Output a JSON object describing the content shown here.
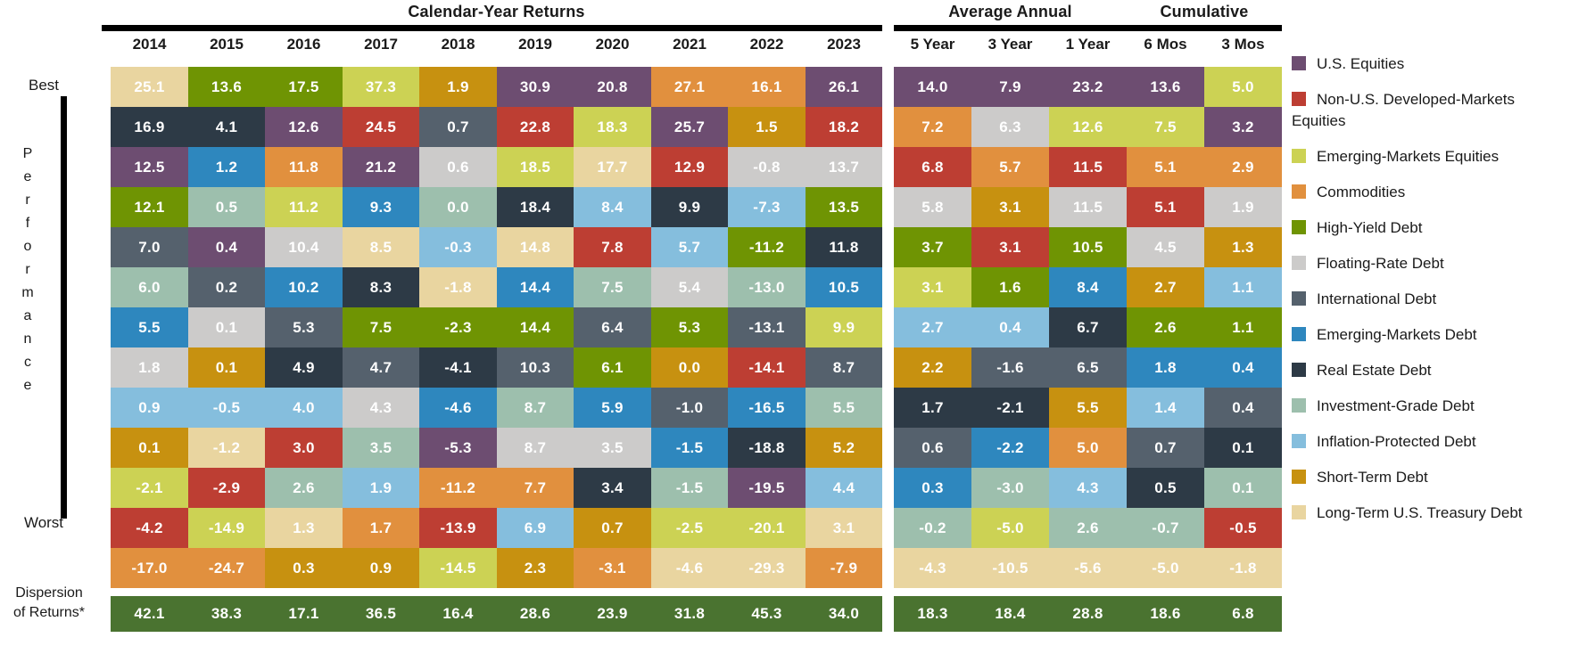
{
  "side": {
    "best": "Best",
    "performance": "Performance",
    "worst": "Worst",
    "dispersion_line1": "Dispersion",
    "dispersion_line2": "of Returns*"
  },
  "chart_data": {
    "type": "heatmap",
    "title": "Asset-class calendar-year returns ranked best to worst",
    "headers": {
      "calendar": "Calendar-Year Returns",
      "average": "Average Annual",
      "cumulative": "Cumulative"
    },
    "assets": {
      "us_equities": {
        "label": "U.S. Equities",
        "color": "#6d4d71"
      },
      "non_us_equities": {
        "label": "Non-U.S. Developed-Markets Equities",
        "color": "#bd3e33"
      },
      "em_equities": {
        "label": "Emerging-Markets Equities",
        "color": "#ccd254"
      },
      "commodities": {
        "label": "Commodities",
        "color": "#e1903e"
      },
      "high_yield": {
        "label": "High-Yield Debt",
        "color": "#6f9403"
      },
      "floating_rate": {
        "label": "Floating-Rate Debt",
        "color": "#cccbca"
      },
      "international": {
        "label": "International Debt",
        "color": "#55616d"
      },
      "em_debt": {
        "label": "Emerging-Markets Debt",
        "color": "#2e87be"
      },
      "real_estate": {
        "label": "Real Estate Debt",
        "color": "#2d3a46"
      },
      "investment_grade": {
        "label": "Investment-Grade Debt",
        "color": "#9dbfad"
      },
      "inflation_protected": {
        "label": "Inflation-Protected Debt",
        "color": "#85bedd"
      },
      "short_term": {
        "label": "Short-Term Debt",
        "color": "#c79110"
      },
      "lt_treasury": {
        "label": "Long-Term U.S. Treasury Debt",
        "color": "#e9d5a0"
      }
    },
    "legend_order": [
      "us_equities",
      "non_us_equities",
      "em_equities",
      "commodities",
      "high_yield",
      "floating_rate",
      "international",
      "em_debt",
      "real_estate",
      "investment_grade",
      "inflation_protected",
      "short_term",
      "lt_treasury"
    ],
    "dispersion_color": "#4a7330",
    "columns": [
      {
        "label": "2014",
        "group": "calendar",
        "dispersion": 42.1,
        "ranking": [
          [
            "lt_treasury",
            25.1
          ],
          [
            "real_estate",
            16.9
          ],
          [
            "us_equities",
            12.5
          ],
          [
            "high_yield",
            12.1
          ],
          [
            "international",
            7.0
          ],
          [
            "investment_grade",
            6.0
          ],
          [
            "em_debt",
            5.5
          ],
          [
            "floating_rate",
            1.8
          ],
          [
            "inflation_protected",
            0.9
          ],
          [
            "short_term",
            0.1
          ],
          [
            "em_equities",
            -2.1
          ],
          [
            "non_us_equities",
            -4.2
          ],
          [
            "commodities",
            -17.0
          ]
        ]
      },
      {
        "label": "2015",
        "group": "calendar",
        "dispersion": 38.3,
        "ranking": [
          [
            "high_yield",
            13.6
          ],
          [
            "real_estate",
            4.1
          ],
          [
            "em_debt",
            1.2
          ],
          [
            "investment_grade",
            0.5
          ],
          [
            "us_equities",
            0.4
          ],
          [
            "international",
            0.2
          ],
          [
            "floating_rate",
            0.1
          ],
          [
            "short_term",
            0.1
          ],
          [
            "inflation_protected",
            -0.5
          ],
          [
            "lt_treasury",
            -1.2
          ],
          [
            "non_us_equities",
            -2.9
          ],
          [
            "em_equities",
            -14.9
          ],
          [
            "commodities",
            -24.7
          ]
        ]
      },
      {
        "label": "2016",
        "group": "calendar",
        "dispersion": 17.1,
        "ranking": [
          [
            "high_yield",
            17.5
          ],
          [
            "us_equities",
            12.6
          ],
          [
            "commodities",
            11.8
          ],
          [
            "em_equities",
            11.2
          ],
          [
            "floating_rate",
            10.4
          ],
          [
            "em_debt",
            10.2
          ],
          [
            "international",
            5.3
          ],
          [
            "real_estate",
            4.9
          ],
          [
            "inflation_protected",
            4.0
          ],
          [
            "non_us_equities",
            3.0
          ],
          [
            "investment_grade",
            2.6
          ],
          [
            "lt_treasury",
            1.3
          ],
          [
            "short_term",
            0.3
          ]
        ]
      },
      {
        "label": "2017",
        "group": "calendar",
        "dispersion": 36.5,
        "ranking": [
          [
            "em_equities",
            37.3
          ],
          [
            "non_us_equities",
            24.5
          ],
          [
            "us_equities",
            21.2
          ],
          [
            "em_debt",
            9.3
          ],
          [
            "lt_treasury",
            8.5
          ],
          [
            "real_estate",
            8.3
          ],
          [
            "high_yield",
            7.5
          ],
          [
            "international",
            4.7
          ],
          [
            "floating_rate",
            4.3
          ],
          [
            "investment_grade",
            3.5
          ],
          [
            "inflation_protected",
            1.9
          ],
          [
            "commodities",
            1.7
          ],
          [
            "short_term",
            0.9
          ]
        ]
      },
      {
        "label": "2018",
        "group": "calendar",
        "dispersion": 16.4,
        "ranking": [
          [
            "short_term",
            1.9
          ],
          [
            "international",
            0.7
          ],
          [
            "floating_rate",
            0.6
          ],
          [
            "investment_grade",
            0.0
          ],
          [
            "inflation_protected",
            -0.3
          ],
          [
            "lt_treasury",
            -1.8
          ],
          [
            "high_yield",
            -2.3
          ],
          [
            "real_estate",
            -4.1
          ],
          [
            "em_debt",
            -4.6
          ],
          [
            "us_equities",
            -5.3
          ],
          [
            "commodities",
            -11.2
          ],
          [
            "non_us_equities",
            -13.9
          ],
          [
            "em_equities",
            -14.5
          ]
        ]
      },
      {
        "label": "2019",
        "group": "calendar",
        "dispersion": 28.6,
        "ranking": [
          [
            "us_equities",
            30.9
          ],
          [
            "non_us_equities",
            22.8
          ],
          [
            "em_equities",
            18.5
          ],
          [
            "real_estate",
            18.4
          ],
          [
            "lt_treasury",
            14.8
          ],
          [
            "em_debt",
            14.4
          ],
          [
            "high_yield",
            14.4
          ],
          [
            "international",
            10.3
          ],
          [
            "investment_grade",
            8.7
          ],
          [
            "floating_rate",
            8.7
          ],
          [
            "commodities",
            7.7
          ],
          [
            "inflation_protected",
            6.9
          ],
          [
            "short_term",
            2.3
          ]
        ]
      },
      {
        "label": "2020",
        "group": "calendar",
        "dispersion": 23.9,
        "ranking": [
          [
            "us_equities",
            20.8
          ],
          [
            "em_equities",
            18.3
          ],
          [
            "lt_treasury",
            17.7
          ],
          [
            "inflation_protected",
            8.4
          ],
          [
            "non_us_equities",
            7.8
          ],
          [
            "investment_grade",
            7.5
          ],
          [
            "international",
            6.4
          ],
          [
            "high_yield",
            6.1
          ],
          [
            "em_debt",
            5.9
          ],
          [
            "floating_rate",
            3.5
          ],
          [
            "real_estate",
            3.4
          ],
          [
            "short_term",
            0.7
          ],
          [
            "commodities",
            -3.1
          ]
        ]
      },
      {
        "label": "2021",
        "group": "calendar",
        "dispersion": 31.8,
        "ranking": [
          [
            "commodities",
            27.1
          ],
          [
            "us_equities",
            25.7
          ],
          [
            "non_us_equities",
            12.9
          ],
          [
            "real_estate",
            9.9
          ],
          [
            "inflation_protected",
            5.7
          ],
          [
            "floating_rate",
            5.4
          ],
          [
            "high_yield",
            5.3
          ],
          [
            "short_term",
            0.0
          ],
          [
            "international",
            -1.0
          ],
          [
            "em_debt",
            -1.5
          ],
          [
            "investment_grade",
            -1.5
          ],
          [
            "em_equities",
            -2.5
          ],
          [
            "lt_treasury",
            -4.6
          ]
        ]
      },
      {
        "label": "2022",
        "group": "calendar",
        "dispersion": 45.3,
        "ranking": [
          [
            "commodities",
            16.1
          ],
          [
            "short_term",
            1.5
          ],
          [
            "floating_rate",
            -0.8
          ],
          [
            "inflation_protected",
            -7.3
          ],
          [
            "high_yield",
            -11.2
          ],
          [
            "investment_grade",
            -13.0
          ],
          [
            "international",
            -13.1
          ],
          [
            "non_us_equities",
            -14.1
          ],
          [
            "em_debt",
            -16.5
          ],
          [
            "real_estate",
            -18.8
          ],
          [
            "us_equities",
            -19.5
          ],
          [
            "em_equities",
            -20.1
          ],
          [
            "lt_treasury",
            -29.3
          ]
        ]
      },
      {
        "label": "2023",
        "group": "calendar",
        "dispersion": 34.0,
        "ranking": [
          [
            "us_equities",
            26.1
          ],
          [
            "non_us_equities",
            18.2
          ],
          [
            "floating_rate",
            13.7
          ],
          [
            "high_yield",
            13.5
          ],
          [
            "real_estate",
            11.8
          ],
          [
            "em_debt",
            10.5
          ],
          [
            "em_equities",
            9.9
          ],
          [
            "international",
            8.7
          ],
          [
            "investment_grade",
            5.5
          ],
          [
            "short_term",
            5.2
          ],
          [
            "inflation_protected",
            4.4
          ],
          [
            "lt_treasury",
            3.1
          ],
          [
            "commodities",
            -7.9
          ]
        ]
      },
      {
        "label": "5 Year",
        "group": "average",
        "dispersion": 18.3,
        "ranking": [
          [
            "us_equities",
            14.0
          ],
          [
            "commodities",
            7.2
          ],
          [
            "non_us_equities",
            6.8
          ],
          [
            "floating_rate",
            5.8
          ],
          [
            "high_yield",
            3.7
          ],
          [
            "em_equities",
            3.1
          ],
          [
            "inflation_protected",
            2.7
          ],
          [
            "short_term",
            2.2
          ],
          [
            "real_estate",
            1.7
          ],
          [
            "international",
            0.6
          ],
          [
            "em_debt",
            0.3
          ],
          [
            "investment_grade",
            -0.2
          ],
          [
            "lt_treasury",
            -4.3
          ]
        ]
      },
      {
        "label": "3 Year",
        "group": "average",
        "dispersion": 18.4,
        "ranking": [
          [
            "us_equities",
            7.9
          ],
          [
            "floating_rate",
            6.3
          ],
          [
            "commodities",
            5.7
          ],
          [
            "short_term",
            3.1
          ],
          [
            "non_us_equities",
            3.1
          ],
          [
            "high_yield",
            1.6
          ],
          [
            "inflation_protected",
            0.4
          ],
          [
            "international",
            -1.6
          ],
          [
            "real_estate",
            -2.1
          ],
          [
            "em_debt",
            -2.2
          ],
          [
            "investment_grade",
            -3.0
          ],
          [
            "em_equities",
            -5.0
          ],
          [
            "lt_treasury",
            -10.5
          ]
        ]
      },
      {
        "label": "1 Year",
        "group": "average",
        "dispersion": 28.8,
        "ranking": [
          [
            "us_equities",
            23.2
          ],
          [
            "em_equities",
            12.6
          ],
          [
            "non_us_equities",
            11.5
          ],
          [
            "floating_rate",
            11.5
          ],
          [
            "high_yield",
            10.5
          ],
          [
            "em_debt",
            8.4
          ],
          [
            "real_estate",
            6.7
          ],
          [
            "international",
            6.5
          ],
          [
            "short_term",
            5.5
          ],
          [
            "commodities",
            5.0
          ],
          [
            "inflation_protected",
            4.3
          ],
          [
            "investment_grade",
            2.6
          ],
          [
            "lt_treasury",
            -5.6
          ]
        ]
      },
      {
        "label": "6 Mos",
        "group": "cumulative",
        "dispersion": 18.6,
        "ranking": [
          [
            "us_equities",
            13.6
          ],
          [
            "em_equities",
            7.5
          ],
          [
            "commodities",
            5.1
          ],
          [
            "non_us_equities",
            5.1
          ],
          [
            "floating_rate",
            4.5
          ],
          [
            "short_term",
            2.7
          ],
          [
            "high_yield",
            2.6
          ],
          [
            "em_debt",
            1.8
          ],
          [
            "inflation_protected",
            1.4
          ],
          [
            "international",
            0.7
          ],
          [
            "real_estate",
            0.5
          ],
          [
            "investment_grade",
            -0.7
          ],
          [
            "lt_treasury",
            -5.0
          ]
        ]
      },
      {
        "label": "3 Mos",
        "group": "cumulative",
        "dispersion": 6.8,
        "ranking": [
          [
            "em_equities",
            5.0
          ],
          [
            "us_equities",
            3.2
          ],
          [
            "commodities",
            2.9
          ],
          [
            "floating_rate",
            1.9
          ],
          [
            "short_term",
            1.3
          ],
          [
            "inflation_protected",
            1.1
          ],
          [
            "high_yield",
            1.1
          ],
          [
            "em_debt",
            0.4
          ],
          [
            "international",
            0.4
          ],
          [
            "real_estate",
            0.1
          ],
          [
            "investment_grade",
            0.1
          ],
          [
            "non_us_equities",
            -0.5
          ],
          [
            "lt_treasury",
            -1.8
          ]
        ]
      }
    ]
  }
}
